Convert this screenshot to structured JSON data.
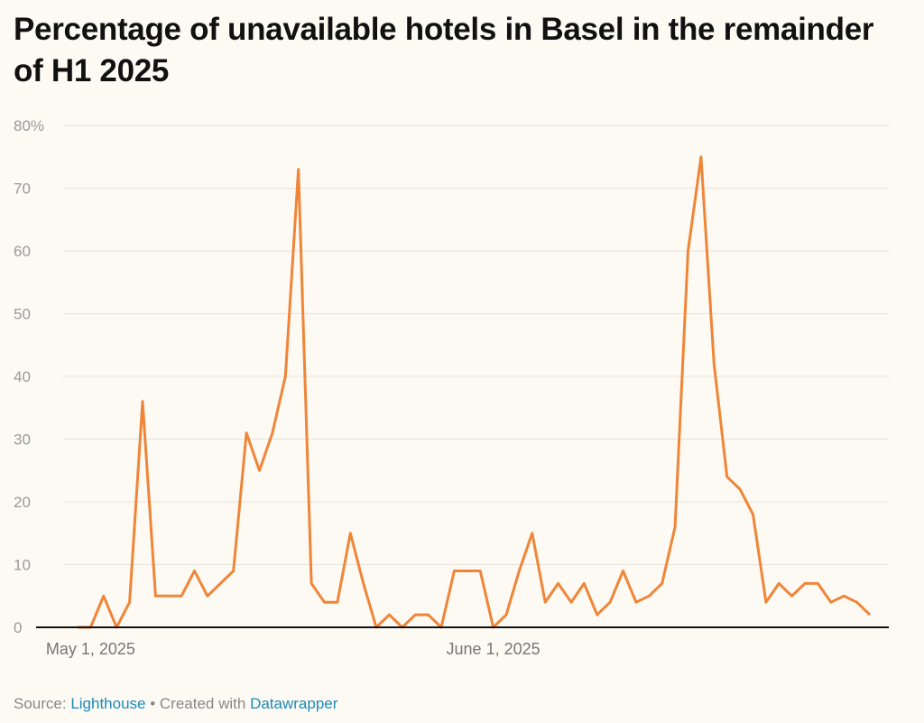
{
  "chart_data": {
    "type": "line",
    "title": "Percentage of unavailable hotels in Basel in the remainder of H1 2025",
    "xlabel": "",
    "ylabel": "",
    "x_start": "2025-04-30",
    "x_end": "2025-06-30",
    "x_ticks": [
      {
        "index": 1,
        "label": "May 1, 2025"
      },
      {
        "index": 32,
        "label": "June 1, 2025"
      }
    ],
    "y_ticks": [
      {
        "value": 0,
        "label": "0"
      },
      {
        "value": 10,
        "label": "10"
      },
      {
        "value": 20,
        "label": "20"
      },
      {
        "value": 30,
        "label": "30"
      },
      {
        "value": 40,
        "label": "40"
      },
      {
        "value": 50,
        "label": "50"
      },
      {
        "value": 60,
        "label": "60"
      },
      {
        "value": 70,
        "label": "70"
      },
      {
        "value": 80,
        "label": "80%"
      }
    ],
    "ylim": [
      0,
      80
    ],
    "grid": true,
    "series": [
      {
        "name": "Unavailable hotels (%)",
        "color": "#f08538",
        "values": [
          0,
          0,
          5,
          0,
          4,
          36,
          5,
          5,
          5,
          9,
          5,
          7,
          9,
          31,
          25,
          31,
          40,
          73,
          7,
          4,
          4,
          15,
          7,
          0,
          2,
          0,
          2,
          2,
          0,
          9,
          9,
          9,
          0,
          2,
          9,
          15,
          4,
          7,
          4,
          7,
          2,
          4,
          9,
          4,
          5,
          7,
          16,
          60,
          75,
          42,
          24,
          22,
          18,
          4,
          7,
          5,
          7,
          7,
          4,
          5,
          4,
          2
        ]
      }
    ]
  },
  "footer": {
    "source_prefix": "Source: ",
    "source": "Lighthouse",
    "separator": " • Created with ",
    "tool": "Datawrapper"
  }
}
